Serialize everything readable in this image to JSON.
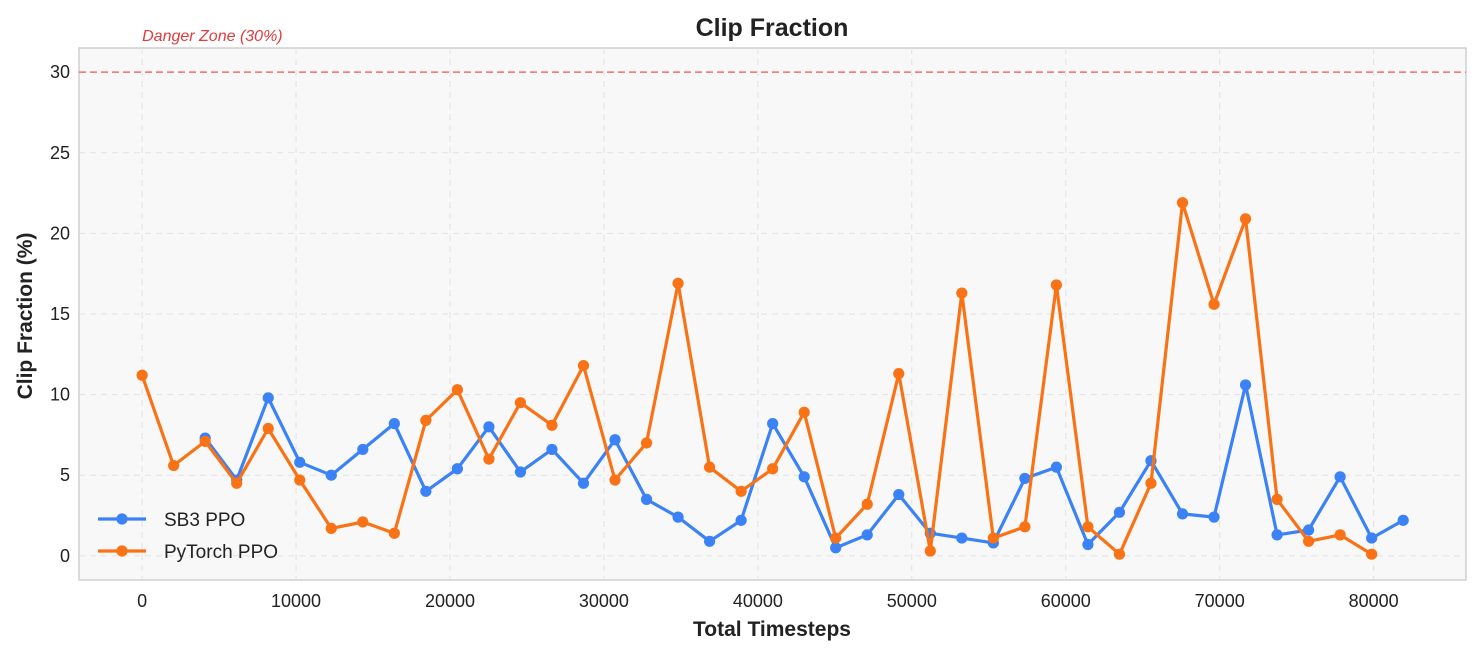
{
  "chart_data": {
    "type": "line",
    "title": "Clip Fraction",
    "xlabel": "Total Timesteps",
    "ylabel": "Clip Fraction (%)",
    "xlim": [
      -4100,
      86000
    ],
    "ylim": [
      -1.5,
      31.5
    ],
    "xticks": [
      0,
      10000,
      20000,
      30000,
      40000,
      50000,
      60000,
      70000,
      80000
    ],
    "yticks": [
      0,
      5,
      10,
      15,
      20,
      25,
      30
    ],
    "grid": true,
    "legend_position": "lower-left",
    "reference_line": {
      "y": 30,
      "label": "Danger Zone (30%)",
      "color": "#f07070",
      "label_color": "#e03c3c"
    },
    "series": [
      {
        "name": "SB3 PPO",
        "color": "#3b82f6",
        "x": [
          4096,
          6144,
          8192,
          10240,
          12288,
          14336,
          16384,
          18432,
          20480,
          22528,
          24576,
          26624,
          28672,
          30720,
          32768,
          34816,
          36864,
          38912,
          40960,
          43008,
          45056,
          47104,
          49152,
          51200,
          53248,
          55296,
          57344,
          59392,
          61440,
          63488,
          65536,
          67584,
          69632,
          71680,
          73728,
          75776,
          77824,
          79872,
          81920
        ],
        "y": [
          7.3,
          4.7,
          9.8,
          5.8,
          5.0,
          6.6,
          8.2,
          4.0,
          5.4,
          8.0,
          5.2,
          6.6,
          4.5,
          7.2,
          3.5,
          2.4,
          0.9,
          2.2,
          8.2,
          4.9,
          0.5,
          1.3,
          3.8,
          1.4,
          1.1,
          0.8,
          4.8,
          5.5,
          0.7,
          2.7,
          5.9,
          2.6,
          2.4,
          10.6,
          1.3,
          1.6,
          4.9,
          1.1,
          2.2
        ]
      },
      {
        "name": "PyTorch PPO",
        "color": "#f97316",
        "x": [
          0,
          2048,
          4096,
          6144,
          8192,
          10240,
          12288,
          14336,
          16384,
          18432,
          20480,
          22528,
          24576,
          26624,
          28672,
          30720,
          32768,
          34816,
          36864,
          38912,
          40960,
          43008,
          45056,
          47104,
          49152,
          51200,
          53248,
          55296,
          57344,
          59392,
          61440,
          63488,
          65536,
          67584,
          69632,
          71680,
          73728,
          75776,
          77824,
          79872
        ],
        "y": [
          11.2,
          5.6,
          7.1,
          4.5,
          7.9,
          4.7,
          1.7,
          2.1,
          1.4,
          8.4,
          10.3,
          6.0,
          9.5,
          8.1,
          11.8,
          4.7,
          7.0,
          16.9,
          5.5,
          4.0,
          5.4,
          8.9,
          1.1,
          3.2,
          11.3,
          0.3,
          16.3,
          1.1,
          1.8,
          16.8,
          1.8,
          0.1,
          4.5,
          21.9,
          15.6,
          20.9,
          3.5,
          0.9,
          1.3,
          0.1
        ]
      }
    ]
  }
}
